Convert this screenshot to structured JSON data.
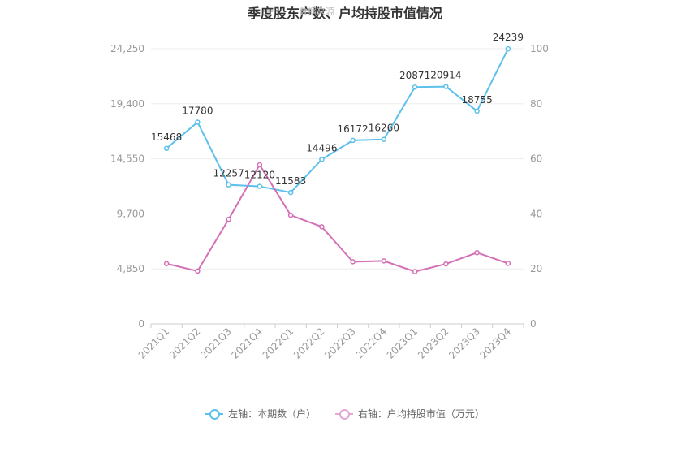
{
  "chart_data": {
    "type": "line",
    "title": "季度股东户数、户均持股市值情况",
    "watermark": "数据来源",
    "categories": [
      "2021Q1",
      "2021Q2",
      "2021Q3",
      "2021Q4",
      "2022Q1",
      "2022Q2",
      "2022Q3",
      "2022Q4",
      "2023Q1",
      "2023Q2",
      "2023Q3",
      "2023Q4"
    ],
    "left_axis": {
      "ylim": [
        0,
        24250
      ],
      "ticks": [
        "0",
        "4,850",
        "9,700",
        "14,550",
        "19,400",
        "24,250"
      ]
    },
    "right_axis": {
      "ylim": [
        0,
        100
      ],
      "ticks": [
        "0",
        "20",
        "40",
        "60",
        "80",
        "100"
      ]
    },
    "grid": true,
    "legend_position": "bottom",
    "series": [
      {
        "name": "左轴：本期数（户）",
        "axis": "left",
        "color": "#5bc0eb",
        "values": [
          15468,
          17780,
          12257,
          12120,
          11583,
          14496,
          16172,
          16260,
          20871,
          20914,
          18755,
          24239
        ],
        "labels": [
          "15468",
          "17780",
          "12257",
          "12120",
          "11583",
          "14496",
          "16172",
          "16260",
          "20871",
          "20914",
          "18755",
          "24239"
        ]
      },
      {
        "name": "右轴：户均持股市值（万元）",
        "axis": "right",
        "color": "#d46fb5",
        "values": [
          21.9,
          19.2,
          38.0,
          57.8,
          39.5,
          35.3,
          22.6,
          22.9,
          19.0,
          21.8,
          25.9,
          22.0
        ]
      }
    ]
  }
}
